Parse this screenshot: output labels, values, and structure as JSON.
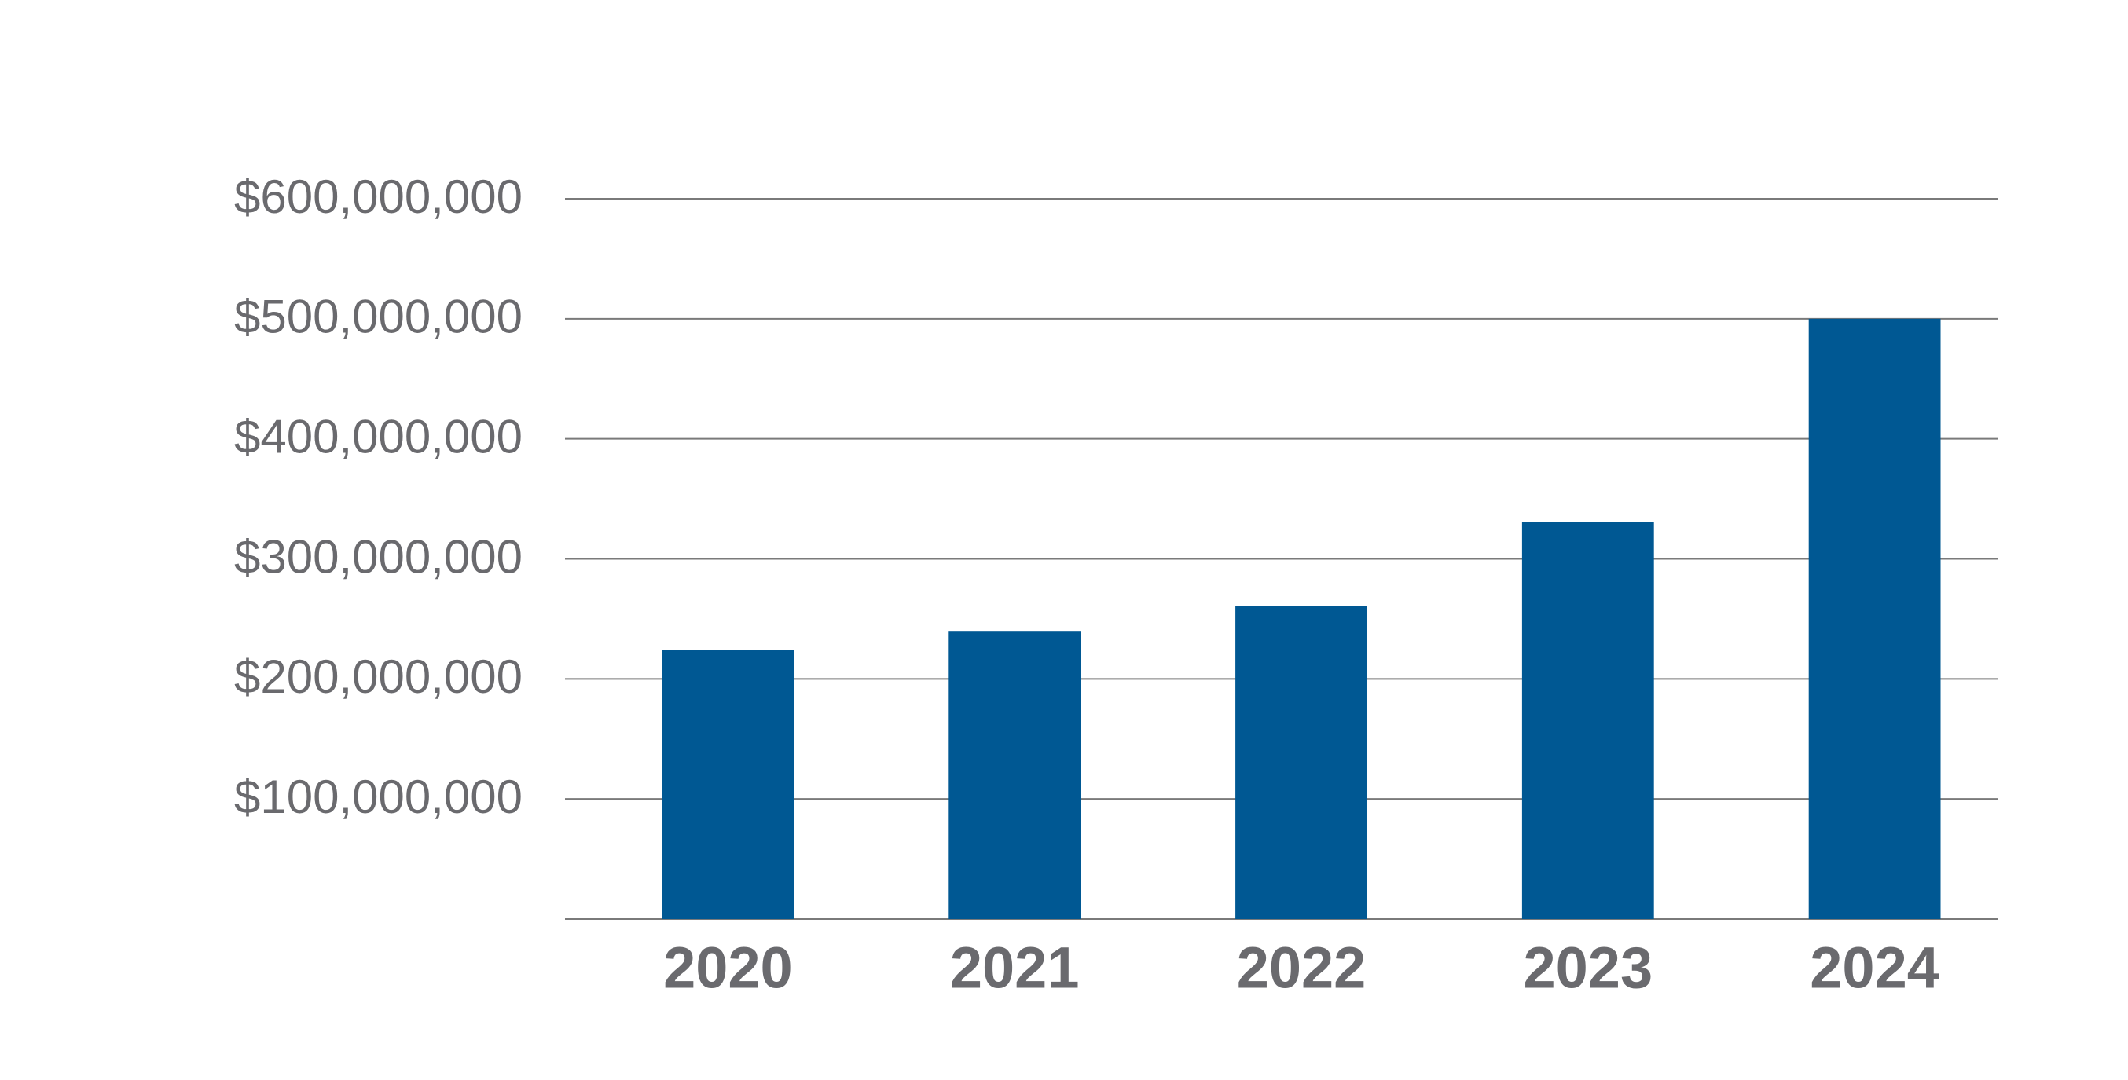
{
  "chart_data": {
    "type": "bar",
    "categories": [
      "2020",
      "2021",
      "2022",
      "2023",
      "2024"
    ],
    "values": [
      224000000,
      240000000,
      261000000,
      331000000,
      500000000
    ],
    "color": "#005893",
    "ylim": [
      0,
      600000000
    ],
    "yticks": [
      {
        "value": 100000000,
        "label": "$100,000,000"
      },
      {
        "value": 200000000,
        "label": "$200,000,000"
      },
      {
        "value": 300000000,
        "label": "$300,000,000"
      },
      {
        "value": 400000000,
        "label": "$400,000,000"
      },
      {
        "value": 500000000,
        "label": "$500,000,000"
      },
      {
        "value": 600000000,
        "label": "$600,000,000"
      }
    ],
    "grid": true
  }
}
